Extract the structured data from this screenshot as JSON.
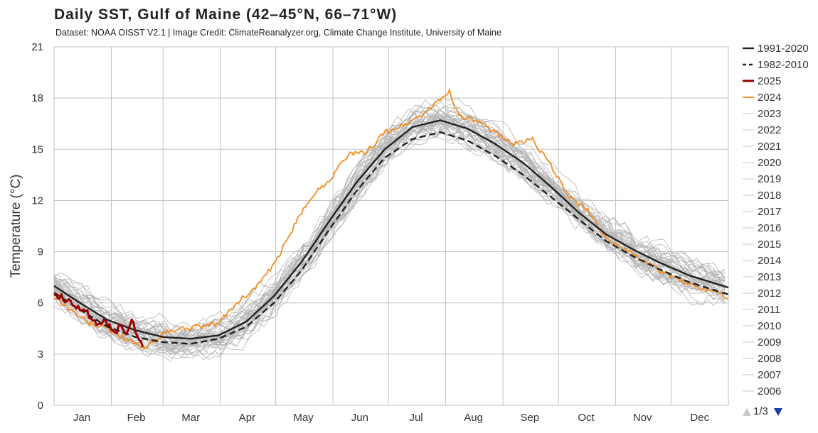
{
  "colors": {
    "grid": "#c0c0c0",
    "history": "#b4b4b4",
    "mean_1991_2020": "#222222",
    "mean_1982_2010": "#222222",
    "year_2025": "#9b0000",
    "year_2024": "#f28c1f",
    "pager_up": "#c8c8c8",
    "pager_down": "#1a3fa0"
  },
  "chart_data": {
    "type": "line",
    "title": "Daily SST, Gulf of Maine (42–45°N, 66–71°W)",
    "subtitle": "Dataset: NOAA OISST V2.1 | Image Credit: ClimateReanalyzer.org, Climate Change Institute, University of Maine",
    "xlabel": "",
    "ylabel": "Temperature (°C)",
    "ylim": [
      0,
      21
    ],
    "yticks": [
      0,
      3,
      6,
      9,
      12,
      15,
      18,
      21
    ],
    "xlim": [
      1,
      366
    ],
    "month_labels": [
      "Jan",
      "Feb",
      "Mar",
      "Apr",
      "May",
      "Jun",
      "Jul",
      "Aug",
      "Sep",
      "Oct",
      "Nov",
      "Dec"
    ],
    "month_starts": [
      1,
      32,
      60,
      91,
      121,
      152,
      182,
      213,
      244,
      274,
      305,
      335
    ],
    "grid": true,
    "legend_position": "right",
    "legend_page": "1/3",
    "series": [
      {
        "name": "1991-2020",
        "style": "solid",
        "x": [
          1,
          15,
          30,
          45,
          60,
          75,
          90,
          105,
          120,
          135,
          150,
          165,
          180,
          195,
          210,
          225,
          240,
          255,
          270,
          285,
          300,
          315,
          330,
          345,
          360,
          366
        ],
        "values": [
          7.0,
          6.0,
          5.0,
          4.4,
          4.0,
          3.9,
          4.1,
          4.9,
          6.4,
          8.4,
          10.8,
          13.1,
          15.0,
          16.3,
          16.7,
          16.2,
          15.3,
          14.2,
          12.8,
          11.3,
          10.0,
          9.1,
          8.3,
          7.6,
          7.1,
          6.9
        ]
      },
      {
        "name": "1982-2010",
        "style": "dashed",
        "x": [
          1,
          15,
          30,
          45,
          60,
          75,
          90,
          105,
          120,
          135,
          150,
          165,
          180,
          195,
          210,
          225,
          240,
          255,
          270,
          285,
          300,
          315,
          330,
          345,
          360,
          366
        ],
        "values": [
          6.6,
          5.6,
          4.6,
          4.0,
          3.7,
          3.6,
          3.9,
          4.6,
          6.0,
          7.9,
          10.3,
          12.6,
          14.5,
          15.6,
          16.0,
          15.5,
          14.6,
          13.5,
          12.2,
          10.9,
          9.6,
          8.7,
          7.9,
          7.2,
          6.7,
          6.5
        ]
      },
      {
        "name": "2025",
        "style": "solid",
        "x": [
          1,
          4,
          7,
          10,
          13,
          16,
          19,
          22,
          25,
          28,
          31,
          34,
          37,
          40,
          43,
          46,
          49
        ],
        "values": [
          6.5,
          6.4,
          6.2,
          6.1,
          5.8,
          5.7,
          5.4,
          5.1,
          4.6,
          4.9,
          4.8,
          4.2,
          4.7,
          4.3,
          4.9,
          4.2,
          3.4
        ]
      },
      {
        "name": "2024",
        "style": "solid",
        "x": [
          1,
          10,
          20,
          30,
          40,
          50,
          60,
          70,
          80,
          90,
          100,
          110,
          120,
          130,
          140,
          150,
          160,
          170,
          180,
          190,
          200,
          210,
          215,
          220,
          230,
          240,
          250,
          260,
          270,
          280,
          290,
          300,
          310,
          320,
          330,
          340,
          350,
          360,
          366
        ],
        "values": [
          6.4,
          5.6,
          4.8,
          4.5,
          3.9,
          3.3,
          4.2,
          4.5,
          4.6,
          4.8,
          6.0,
          6.9,
          8.2,
          10.3,
          12.2,
          13.2,
          14.7,
          14.8,
          16.0,
          16.4,
          17.0,
          17.9,
          18.4,
          17.0,
          16.6,
          16.0,
          15.3,
          15.6,
          14.0,
          12.2,
          11.4,
          9.8,
          9.1,
          8.5,
          7.8,
          7.3,
          6.9,
          6.7,
          6.3
        ]
      }
    ],
    "historical_years": [
      "2023",
      "2022",
      "2021",
      "2020",
      "2019",
      "2018",
      "2017",
      "2016",
      "2015",
      "2014",
      "2013",
      "2012",
      "2011",
      "2010",
      "2009",
      "2008",
      "2007",
      "2006"
    ]
  }
}
